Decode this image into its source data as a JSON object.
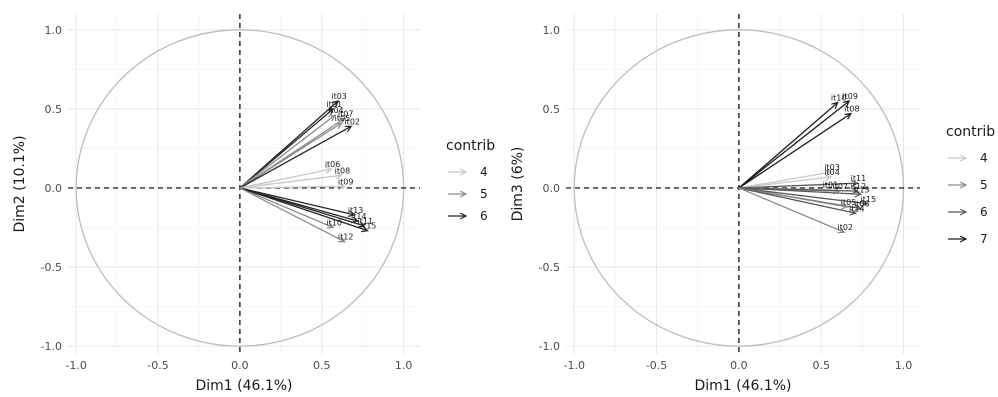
{
  "chart_data": [
    {
      "type": "scatter",
      "subtype": "pca-variable-correlation-circle",
      "xlabel": "Dim1 (46.1%)",
      "ylabel": "Dim2 (10.1%)",
      "xlim": [
        -1.05,
        1.1
      ],
      "ylim": [
        -1.05,
        1.1
      ],
      "ticks": [
        -1.0,
        -0.5,
        0.0,
        0.5,
        1.0
      ],
      "tick_labels": [
        "-1.0",
        "-0.5",
        "0.0",
        "0.5",
        "1.0"
      ],
      "grid": true,
      "unit_circle": true,
      "legend": {
        "title": "contrib",
        "placement": "right",
        "levels": [
          "4",
          "5",
          "6"
        ],
        "colors": [
          "#c8c8c8",
          "#8c8c8c",
          "#262626"
        ]
      },
      "points": [
        {
          "label": "it03",
          "x": 0.6,
          "y": 0.55,
          "contrib": 6
        },
        {
          "label": "it01",
          "x": 0.57,
          "y": 0.5,
          "contrib": 6
        },
        {
          "label": "it04",
          "x": 0.58,
          "y": 0.46,
          "contrib": 5
        },
        {
          "label": "it07",
          "x": 0.64,
          "y": 0.44,
          "contrib": 5
        },
        {
          "label": "it05",
          "x": 0.62,
          "y": 0.41,
          "contrib": 5
        },
        {
          "label": "it02",
          "x": 0.68,
          "y": 0.39,
          "contrib": 6
        },
        {
          "label": "it06",
          "x": 0.56,
          "y": 0.12,
          "contrib": 4
        },
        {
          "label": "it08",
          "x": 0.62,
          "y": 0.08,
          "contrib": 4
        },
        {
          "label": "it09",
          "x": 0.64,
          "y": 0.01,
          "contrib": 4
        },
        {
          "label": "it13",
          "x": 0.7,
          "y": -0.17,
          "contrib": 6
        },
        {
          "label": "it14",
          "x": 0.72,
          "y": -0.21,
          "contrib": 6
        },
        {
          "label": "it11",
          "x": 0.76,
          "y": -0.24,
          "contrib": 6
        },
        {
          "label": "it10",
          "x": 0.57,
          "y": -0.25,
          "contrib": 5
        },
        {
          "label": "it15",
          "x": 0.78,
          "y": -0.27,
          "contrib": 6
        },
        {
          "label": "it12",
          "x": 0.64,
          "y": -0.34,
          "contrib": 5
        }
      ]
    },
    {
      "type": "scatter",
      "subtype": "pca-variable-correlation-circle",
      "xlabel": "Dim1 (46.1%)",
      "ylabel": "Dim3 (6%)",
      "xlim": [
        -1.05,
        1.1
      ],
      "ylim": [
        -1.05,
        1.1
      ],
      "ticks": [
        -1.0,
        -0.5,
        0.0,
        0.5,
        1.0
      ],
      "tick_labels": [
        "-1.0",
        "-0.5",
        "0.0",
        "0.5",
        "1.0"
      ],
      "grid": true,
      "unit_circle": true,
      "legend": {
        "title": "contrib",
        "placement": "right",
        "levels": [
          "4",
          "5",
          "6",
          "7"
        ],
        "colors": [
          "#c8c8c8",
          "#8c8c8c",
          "#595959",
          "#1a1a1a"
        ]
      },
      "points": [
        {
          "label": "it10",
          "x": 0.6,
          "y": 0.54,
          "contrib": 7
        },
        {
          "label": "it09",
          "x": 0.67,
          "y": 0.55,
          "contrib": 7
        },
        {
          "label": "it08",
          "x": 0.68,
          "y": 0.47,
          "contrib": 7
        },
        {
          "label": "it03",
          "x": 0.56,
          "y": 0.1,
          "contrib": 4
        },
        {
          "label": "it04",
          "x": 0.56,
          "y": 0.07,
          "contrib": 4
        },
        {
          "label": "it11",
          "x": 0.72,
          "y": 0.03,
          "contrib": 6
        },
        {
          "label": "it01",
          "x": 0.55,
          "y": -0.01,
          "contrib": 4
        },
        {
          "label": "it07",
          "x": 0.61,
          "y": -0.02,
          "contrib": 5
        },
        {
          "label": "it12",
          "x": 0.72,
          "y": -0.02,
          "contrib": 6
        },
        {
          "label": "it13",
          "x": 0.74,
          "y": -0.04,
          "contrib": 6
        },
        {
          "label": "it15",
          "x": 0.78,
          "y": -0.1,
          "contrib": 6
        },
        {
          "label": "it06",
          "x": 0.74,
          "y": -0.13,
          "contrib": 6
        },
        {
          "label": "it05",
          "x": 0.66,
          "y": -0.12,
          "contrib": 5
        },
        {
          "label": "it14",
          "x": 0.71,
          "y": -0.16,
          "contrib": 6
        },
        {
          "label": "it02",
          "x": 0.64,
          "y": -0.28,
          "contrib": 5
        }
      ]
    }
  ]
}
